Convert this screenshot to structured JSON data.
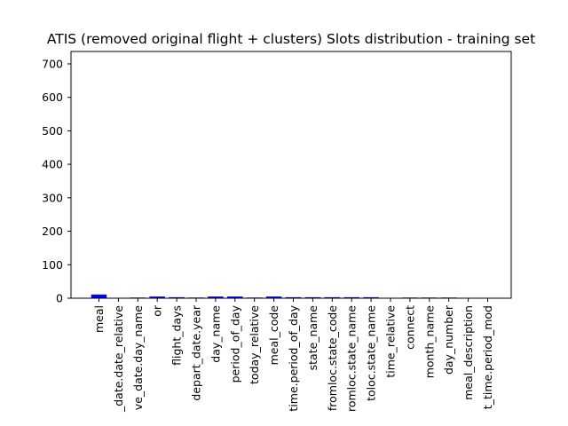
{
  "chart_data": {
    "type": "bar",
    "title": "ATIS (removed original flight + clusters) Slots distribution - training set",
    "xlabel": "",
    "ylabel": "",
    "ylim": [
      0,
      737
    ],
    "yticks": [
      0,
      100,
      200,
      300,
      400,
      500,
      600,
      700
    ],
    "grid": false,
    "legend": "none",
    "bar_color": "#0000ff",
    "categories": [
      "meal",
      "_date.date_relative",
      "ve_date.day_name",
      "or",
      "flight_days",
      "depart_date.year",
      "day_name",
      "period_of_day",
      "today_relative",
      "meal_code",
      "time.period_of_day",
      "state_name",
      "fromloc.state_code",
      "romloc.state_name",
      "toloc.state_name",
      "time_relative",
      "connect",
      "month_name",
      "day_number",
      "meal_description",
      "t_time.period_mod"
    ],
    "values": [
      11,
      1,
      2,
      5,
      3,
      2,
      5,
      5,
      2,
      5,
      3,
      3,
      3,
      3,
      3,
      1,
      2,
      2,
      2,
      1,
      1
    ]
  }
}
